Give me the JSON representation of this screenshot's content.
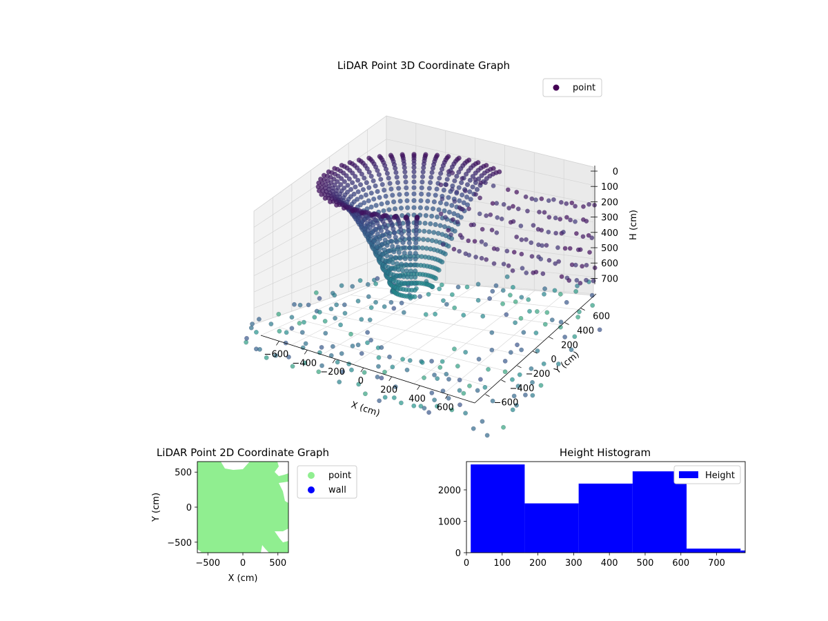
{
  "chart_data": [
    {
      "type": "scatter",
      "projection": "3d",
      "title": "LiDAR Point 3D Coordinate Graph",
      "xlabel": "X (cm)",
      "ylabel": "Y (cm)",
      "zlabel": "H (cm)",
      "xlim": [
        -700,
        700
      ],
      "ylim": [
        -700,
        700
      ],
      "zlim": [
        0,
        780
      ],
      "z_inverted": true,
      "xticks": [
        "−600",
        "−400",
        "−200",
        "0",
        "200",
        "400",
        "600"
      ],
      "yticks": [
        "−600",
        "−400",
        "−200",
        "0",
        "200",
        "400",
        "600"
      ],
      "zticks": [
        "0",
        "100",
        "200",
        "300",
        "400",
        "500",
        "600",
        "700"
      ],
      "grid": true,
      "colormap": "viridis",
      "legend": {
        "placement": "top-right",
        "entries": [
          "point"
        ]
      },
      "series": [
        {
          "name": "point",
          "color": "#440154",
          "description_of_shape": "dome of rings around origin, sparse grid of points on floor"
        }
      ]
    },
    {
      "type": "scatter",
      "title": "LiDAR Point 2D Coordinate Graph",
      "xlabel": "X (cm)",
      "ylabel": "Y (cm)",
      "xlim": [
        -650,
        650
      ],
      "ylim": [
        -650,
        650
      ],
      "xticks": [
        "−500",
        "0",
        "500"
      ],
      "yticks": [
        "−500",
        "0",
        "500"
      ],
      "legend": {
        "placement": "outside-right",
        "entries": [
          "point",
          "wall"
        ]
      },
      "series": [
        {
          "name": "point",
          "color": "#90ee90"
        },
        {
          "name": "wall",
          "color": "#0000ff"
        }
      ]
    },
    {
      "type": "bar",
      "title": "Height Histogram",
      "xticks": [
        "0",
        "100",
        "200",
        "300",
        "400",
        "500",
        "600",
        "700"
      ],
      "yticks": [
        "0",
        "1000",
        "2000"
      ],
      "xlim": [
        0,
        780
      ],
      "ylim": [
        0,
        2900
      ],
      "bin_edges": [
        12,
        163,
        314,
        465,
        616,
        767,
        780
      ],
      "values": [
        2810,
        1570,
        2200,
        2590,
        130,
        70
      ],
      "color": "#0000ff",
      "legend": {
        "placement": "top-right",
        "entries": [
          "Height"
        ]
      },
      "series": [
        {
          "name": "Height"
        }
      ]
    }
  ]
}
